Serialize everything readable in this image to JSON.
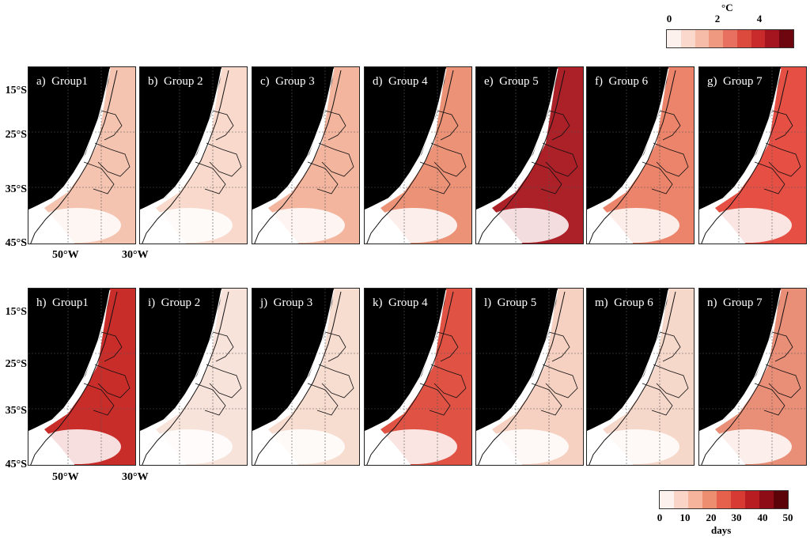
{
  "top_colorbar": {
    "unit": "°C",
    "ticks": [
      "0",
      "2",
      "4"
    ],
    "colors": [
      "#fdf1ed",
      "#fad8cc",
      "#f6bca8",
      "#ef9a80",
      "#e77060",
      "#dc4a3e",
      "#c92a2c",
      "#a51520",
      "#6e0610"
    ]
  },
  "bottom_colorbar": {
    "unit": "days",
    "ticks": [
      "0",
      "10",
      "20",
      "30",
      "40",
      "50"
    ],
    "colors": [
      "#fdf1ed",
      "#fad4c6",
      "#f5b49b",
      "#ee8e70",
      "#e5614c",
      "#d73a32",
      "#b81d22",
      "#8e0c16",
      "#5c0309"
    ]
  },
  "lat_labels": [
    "15°S",
    "25°S",
    "35°S",
    "45°S"
  ],
  "lon_labels": [
    "50°W",
    "30°W"
  ],
  "rows": [
    {
      "panels": [
        {
          "label": "a)",
          "name": "Group1",
          "fill": "#f4c1ad"
        },
        {
          "label": "b)",
          "name": "Group 2",
          "fill": "#f8d7c9"
        },
        {
          "label": "c)",
          "name": "Group 3",
          "fill": "#f2b199"
        },
        {
          "label": "d)",
          "name": "Group 4",
          "fill": "#eb8c70"
        },
        {
          "label": "e)",
          "name": "Group 5",
          "fill": "#a8141c"
        },
        {
          "label": "f)",
          "name": "Group 6",
          "fill": "#ea7d62"
        },
        {
          "label": "g)",
          "name": "Group 7",
          "fill": "#e4463a"
        }
      ]
    },
    {
      "panels": [
        {
          "label": "h)",
          "name": "Group1",
          "fill": "#c5221f"
        },
        {
          "label": "i)",
          "name": "Group 2",
          "fill": "#f8e2d9"
        },
        {
          "label": "j)",
          "name": "Group 3",
          "fill": "#f7dacd"
        },
        {
          "label": "k)",
          "name": "Group 4",
          "fill": "#de4a3a"
        },
        {
          "label": "l)",
          "name": "Group 5",
          "fill": "#f5cdbd"
        },
        {
          "label": "m)",
          "name": "Group 6",
          "fill": "#f6d6c8"
        },
        {
          "label": "n)",
          "name": "Group 7",
          "fill": "#e88870"
        }
      ]
    }
  ]
}
